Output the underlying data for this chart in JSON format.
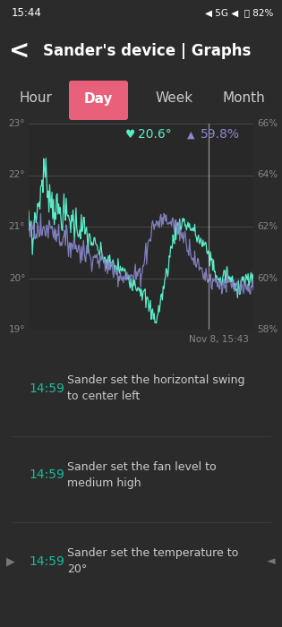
{
  "bg_color": "#2b2b2b",
  "header_color": "#1abc9c",
  "status_bg": "#169a7f",
  "header_text": "Sander's device | Graphs",
  "active_tab": "Day",
  "active_tab_color": "#e8607a",
  "status_bar_text": "15:44",
  "status_right": "4 5G 4  82%",
  "tooltip_temp": "20.6°",
  "tooltip_hum": "59.8%",
  "y_temp_labels": [
    "19°",
    "20°",
    "21°",
    "22°",
    "23°"
  ],
  "y_temp_values": [
    19,
    20,
    21,
    22,
    23
  ],
  "y_hum_labels": [
    "58%",
    "60%",
    "62%",
    "64%",
    "66%"
  ],
  "y_hum_values": [
    58,
    60,
    62,
    64,
    66
  ],
  "date_label": "Nov 8, 15:43",
  "temp_color": "#5aecc8",
  "hum_color": "#8888cc",
  "grid_color": "#555555",
  "axis_label_color": "#888888",
  "tooltip_bg": "#3d3d3d",
  "events": [
    {
      "time": "14:59",
      "text": "Sander set the horizontal swing\nto center left",
      "has_arrows": false
    },
    {
      "time": "14:59",
      "text": "Sander set the fan level to\nmedium high",
      "has_arrows": false
    },
    {
      "time": "14:59",
      "text": "Sander set the temperature to\n20°",
      "has_arrows": true
    }
  ],
  "event_time_color": "#1abc9c",
  "event_text_color": "#cccccc",
  "divider_color": "#3a3a3a",
  "bottom_bar_color": "#666666"
}
